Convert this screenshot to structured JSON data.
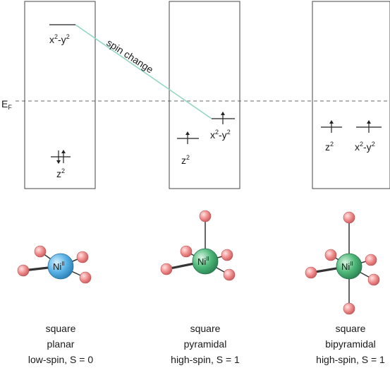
{
  "fermi_label": {
    "base": "E",
    "sub": "F"
  },
  "panels": [
    {
      "levels": [
        {
          "base": "x",
          "sup1": "2",
          "mid": "-y",
          "sup2": "2",
          "electrons": ""
        },
        {
          "base": "z",
          "sup1": "2",
          "mid": "",
          "sup2": "",
          "electrons": "paired"
        }
      ],
      "metal": {
        "base": "Ni",
        "sup": "II",
        "color": "#59b3e6"
      },
      "caption": [
        "square",
        "planar",
        "low-spin, S = 0"
      ]
    },
    {
      "levels": [
        {
          "base": "z",
          "sup1": "2",
          "mid": "",
          "sup2": "",
          "electrons": "up"
        },
        {
          "base": "x",
          "sup1": "2",
          "mid": "-y",
          "sup2": "2",
          "electrons": "up"
        }
      ],
      "metal": {
        "base": "Ni",
        "sup": "II",
        "color": "#4fb87a"
      },
      "caption": [
        "square",
        "pyramidal",
        "high-spin, S = 1"
      ]
    },
    {
      "levels": [
        {
          "base": "z",
          "sup1": "2",
          "mid": "",
          "sup2": "",
          "electrons": "up"
        },
        {
          "base": "x",
          "sup1": "2",
          "mid": "-y",
          "sup2": "2",
          "electrons": "up"
        }
      ],
      "metal": {
        "base": "Ni",
        "sup": "II",
        "color": "#4fb87a"
      },
      "caption": [
        "square",
        "bipyramidal",
        "high-spin, S = 1"
      ]
    }
  ],
  "transition_label": "spin change",
  "colors": {
    "transition_line": "#8fd6c0",
    "fermi_line": "#9a9a9a",
    "ligand": "#f08c8c",
    "bond": "#333333"
  }
}
